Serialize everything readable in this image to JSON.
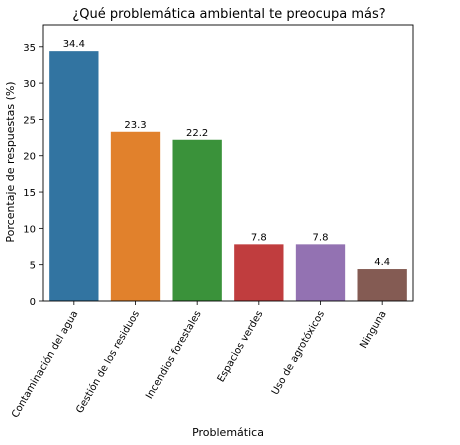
{
  "chart_data": {
    "type": "bar",
    "title": "¿Qué problemática ambiental te preocupa más?",
    "xlabel": "Problemática",
    "ylabel": "Porcentaje de respuestas (%)",
    "categories": [
      "Contaminación del agua",
      "Gestión de los residuos",
      "Incendios forestales",
      "Espacios verdes",
      "Uso de agrotóxicos",
      "Ninguna"
    ],
    "values": [
      34.4,
      23.3,
      22.2,
      7.8,
      7.8,
      4.4
    ],
    "data_labels": [
      "34.4",
      "23.3",
      "22.2",
      "7.8",
      "7.8",
      "4.4"
    ],
    "colors": [
      "#3274a1",
      "#e1812c",
      "#3a923a",
      "#c03d3e",
      "#9372b2",
      "#845b53"
    ],
    "ylim": [
      0,
      38
    ],
    "yticks": [
      0,
      5,
      10,
      15,
      20,
      25,
      30,
      35
    ],
    "grid": false,
    "legend": "none"
  }
}
